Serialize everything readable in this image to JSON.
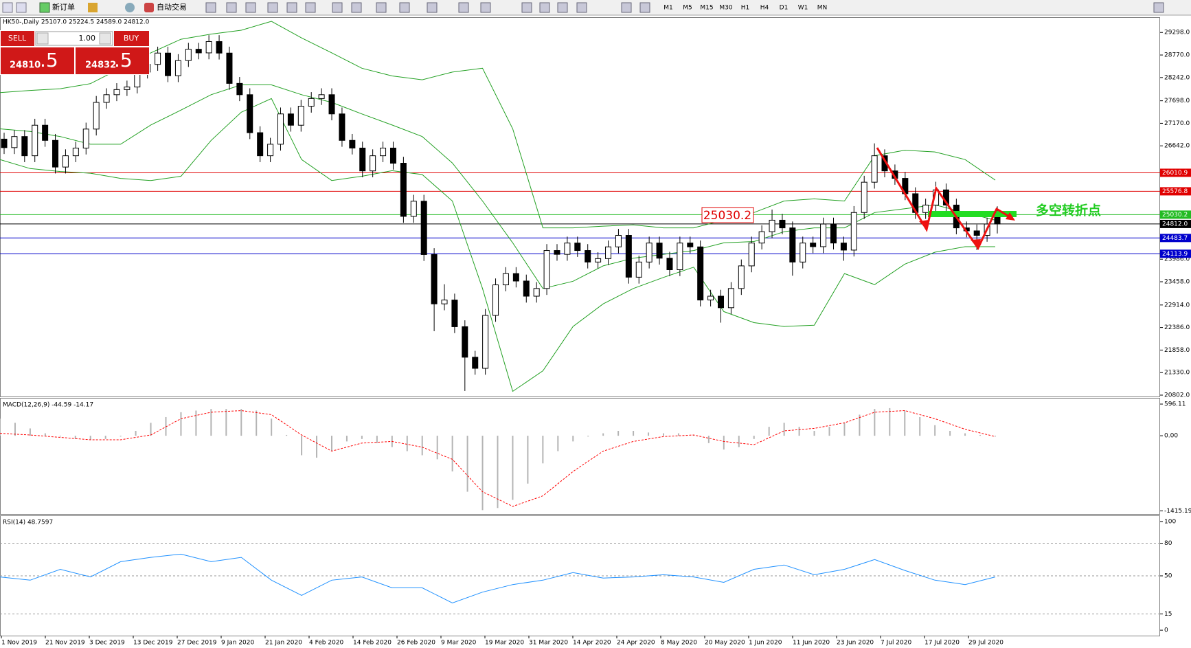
{
  "toolbar": {
    "items": [
      "新订单",
      "自动交易"
    ],
    "timeframes": [
      "M1",
      "M5",
      "M15",
      "M30",
      "H1",
      "H4",
      "D1",
      "W1",
      "MN"
    ]
  },
  "trade_panel": {
    "sell": "SELL",
    "lot": "1.00",
    "buy": "BUY",
    "sell_price": "24810",
    "sell_pips": ".5",
    "buy_price": "24832",
    "buy_pips": ".5"
  },
  "annotations": {
    "level_box": "25030.2",
    "note": "多空转折点"
  },
  "date_axis": [
    "1 Nov 2019",
    "21 Nov 2019",
    "3 Dec 2019",
    "13 Dec 2019",
    "27 Dec 2019",
    "9 Jan 2020",
    "21 Jan 2020",
    "4 Feb 2020",
    "14 Feb 2020",
    "26 Feb 2020",
    "9 Mar 2020",
    "19 Mar 2020",
    "31 Mar 2020",
    "14 Apr 2020",
    "24 Apr 2020",
    "8 May 2020",
    "20 May 2020",
    "1 Jun 2020",
    "11 Jun 2020",
    "23 Jun 2020",
    "7 Jul 2020",
    "17 Jul 2020",
    "29 Jul 2020"
  ],
  "chart_data": [
    {
      "type": "candlestick",
      "title": "HK50-,Daily 25107.0 25224.5 24589.0 24812.0",
      "ylim": [
        20770,
        29640
      ],
      "yticks": [
        {
          "value": 29298,
          "label": "29298.0"
        },
        {
          "value": 28770,
          "label": "28770.0"
        },
        {
          "value": 28242,
          "label": "28242.0"
        },
        {
          "value": 27698,
          "label": "27698.0"
        },
        {
          "value": 27170,
          "label": "27170.0"
        },
        {
          "value": 26642,
          "label": "26642.0"
        },
        {
          "value": 23986,
          "label": "23986.0"
        },
        {
          "value": 23458,
          "label": "23458.0"
        },
        {
          "value": 22914,
          "label": "22914.0"
        },
        {
          "value": 22386,
          "label": "22386.0"
        },
        {
          "value": 21858,
          "label": "21858.0"
        },
        {
          "value": 21330,
          "label": "21330.0"
        },
        {
          "value": 20802,
          "label": "20802.0"
        }
      ],
      "levels": [
        {
          "value": 26010.9,
          "color": "#e00000"
        },
        {
          "value": 25576.8,
          "color": "#e00000"
        },
        {
          "value": 25030.2,
          "color": "#22bb22"
        },
        {
          "value": 24812,
          "label": "24812.0",
          "color": "#000000"
        },
        {
          "value": 24483.7,
          "color": "#0000cc"
        },
        {
          "value": 24113.9,
          "color": "#0000cc"
        }
      ],
      "candles": [
        [
          26800,
          26950,
          26450,
          26600
        ],
        [
          26600,
          27010,
          26450,
          26860
        ],
        [
          26860,
          27010,
          26260,
          26410
        ],
        [
          26410,
          27275,
          26260,
          27125
        ],
        [
          27125,
          27275,
          26620,
          26770
        ],
        [
          26770,
          26920,
          25995,
          26145
        ],
        [
          26145,
          26560,
          25995,
          26410
        ],
        [
          26410,
          26740,
          26260,
          26590
        ],
        [
          26590,
          27185,
          26440,
          27035
        ],
        [
          27035,
          27810,
          26885,
          27660
        ],
        [
          27660,
          27990,
          27510,
          27840
        ],
        [
          27840,
          28110,
          27690,
          27960
        ],
        [
          27960,
          28170,
          27810,
          28020
        ],
        [
          28020,
          28520,
          27870,
          28370
        ],
        [
          28370,
          28700,
          28220,
          28550
        ],
        [
          28550,
          28965,
          28400,
          28815
        ],
        [
          28815,
          28965,
          28135,
          28285
        ],
        [
          28285,
          28790,
          28135,
          28640
        ],
        [
          28640,
          29055,
          28490,
          28905
        ],
        [
          28905,
          29055,
          28670,
          28820
        ],
        [
          28820,
          29235,
          28670,
          29085
        ],
        [
          29085,
          29235,
          28665,
          28815
        ],
        [
          28815,
          28965,
          27955,
          28105
        ],
        [
          28105,
          28255,
          27690,
          27840
        ],
        [
          27840,
          27990,
          26800,
          26950
        ],
        [
          26950,
          27100,
          26260,
          26410
        ],
        [
          26410,
          26830,
          26260,
          26680
        ],
        [
          26680,
          27540,
          26530,
          27390
        ],
        [
          27390,
          27540,
          26975,
          27125
        ],
        [
          27125,
          27720,
          26975,
          27570
        ],
        [
          27570,
          27900,
          27420,
          27750
        ],
        [
          27750,
          27990,
          27600,
          27840
        ],
        [
          27840,
          27990,
          27240,
          27390
        ],
        [
          27390,
          27540,
          26620,
          26770
        ],
        [
          26770,
          26920,
          26440,
          26590
        ],
        [
          26590,
          26740,
          25905,
          26055
        ],
        [
          26055,
          26560,
          25905,
          26410
        ],
        [
          26410,
          26740,
          26260,
          26590
        ],
        [
          26590,
          26740,
          26085,
          26235
        ],
        [
          26235,
          26385,
          24840,
          24990
        ],
        [
          24990,
          25495,
          24840,
          25345
        ],
        [
          25345,
          25495,
          23945,
          24095
        ],
        [
          24095,
          24245,
          22300,
          22940
        ],
        [
          22940,
          23400,
          22790,
          23030
        ],
        [
          23030,
          23180,
          22255,
          22405
        ],
        [
          22405,
          22555,
          20900,
          21690
        ],
        [
          21690,
          21840,
          21280,
          21430
        ],
        [
          21430,
          22820,
          21280,
          22670
        ],
        [
          22670,
          23535,
          22520,
          23385
        ],
        [
          23385,
          23800,
          23235,
          23650
        ],
        [
          23650,
          23800,
          23325,
          23475
        ],
        [
          23475,
          23625,
          22970,
          23120
        ],
        [
          23120,
          23450,
          22970,
          23300
        ],
        [
          23300,
          24340,
          23150,
          24190
        ],
        [
          24190,
          24340,
          23950,
          24100
        ],
        [
          24100,
          24515,
          23950,
          24365
        ],
        [
          24365,
          24515,
          24040,
          24190
        ],
        [
          24190,
          24340,
          23770,
          23920
        ],
        [
          23920,
          24150,
          23770,
          24000
        ],
        [
          24000,
          24425,
          23850,
          24275
        ],
        [
          24275,
          24695,
          24125,
          24545
        ],
        [
          24545,
          24695,
          23415,
          23565
        ],
        [
          23565,
          24070,
          23415,
          23920
        ],
        [
          23920,
          24515,
          23770,
          24365
        ],
        [
          24365,
          24515,
          23860,
          24010
        ],
        [
          24010,
          24160,
          23590,
          23740
        ],
        [
          23740,
          24515,
          23590,
          24365
        ],
        [
          24365,
          24515,
          24125,
          24275
        ],
        [
          24275,
          24425,
          22880,
          23030
        ],
        [
          23030,
          23270,
          22880,
          23120
        ],
        [
          23120,
          23270,
          22500,
          22850
        ],
        [
          22850,
          23450,
          22700,
          23300
        ],
        [
          23300,
          23980,
          23150,
          23830
        ],
        [
          23830,
          24515,
          23680,
          24365
        ],
        [
          24365,
          24780,
          24215,
          24630
        ],
        [
          24630,
          25150,
          24480,
          24900
        ],
        [
          24900,
          25050,
          24570,
          24720
        ],
        [
          24720,
          24870,
          23600,
          23920
        ],
        [
          23920,
          24515,
          23770,
          24365
        ],
        [
          24365,
          24515,
          24130,
          24280
        ],
        [
          24280,
          24960,
          24130,
          24810
        ],
        [
          24810,
          24960,
          24215,
          24365
        ],
        [
          24365,
          24515,
          23950,
          24200
        ],
        [
          24200,
          25230,
          24050,
          25080
        ],
        [
          25080,
          25940,
          24930,
          25790
        ],
        [
          25790,
          26700,
          25640,
          26410
        ],
        [
          26410,
          26560,
          25905,
          26055
        ],
        [
          26055,
          26205,
          25730,
          25880
        ],
        [
          25880,
          26030,
          25370,
          25520
        ],
        [
          25520,
          25670,
          24930,
          25080
        ],
        [
          25080,
          25405,
          24930,
          25255
        ],
        [
          25255,
          25800,
          25105,
          25610
        ],
        [
          25610,
          25760,
          25105,
          25255
        ],
        [
          25255,
          25405,
          24570,
          24720
        ],
        [
          24720,
          24870,
          24500,
          24650
        ],
        [
          24650,
          24800,
          24200,
          24545
        ],
        [
          24545,
          24960,
          24395,
          24810
        ],
        [
          25107,
          25224.5,
          24589,
          24812
        ]
      ],
      "series": [
        {
          "color": "#22a022",
          "values": [
            27890,
            27940,
            27980,
            28100,
            28460,
            28820,
            29140,
            29260,
            29350,
            29560,
            29170,
            28820,
            28460,
            28280,
            28190,
            28370,
            28460,
            27040,
            24720,
            24720,
            24760,
            24790,
            24720,
            24720,
            24900,
            25080,
            25350,
            25400,
            25350,
            26410,
            26540,
            26500,
            26320,
            25840
          ]
        },
        {
          "color": "#22a022",
          "values": [
            27040,
            26980,
            26860,
            26680,
            26680,
            27130,
            27480,
            27840,
            28070,
            28070,
            27840,
            27660,
            27390,
            27130,
            26860,
            26240,
            25350,
            24370,
            23300,
            23470,
            23830,
            24010,
            24100,
            24190,
            24370,
            24400,
            24630,
            24720,
            24720,
            25080,
            25170,
            25260,
            25080,
            24900
          ]
        },
        {
          "color": "#22a022",
          "values": [
            26320,
            26110,
            26040,
            26000,
            25880,
            25830,
            25930,
            26770,
            27430,
            27750,
            26320,
            25830,
            25930,
            26060,
            25970,
            25350,
            23300,
            20890,
            21370,
            22410,
            22940,
            23300,
            23560,
            23800,
            22760,
            22500,
            22410,
            22440,
            23650,
            23390,
            23870,
            24150,
            24280,
            24280
          ]
        }
      ]
    },
    {
      "type": "macd",
      "title": "MACD(12,26,9) -44.59 -14.17",
      "ylim": [
        -1473,
        700
      ],
      "yticks": [
        596.11,
        {
          "value": 0,
          "label": "0.00"
        },
        -1415.19
      ],
      "series": [
        {
          "type": "bar",
          "color": "#b4b4b4",
          "values": [
            321,
            244,
            138,
            46,
            -15,
            -61,
            -76,
            -61,
            -15,
            92,
            244,
            351,
            443,
            474,
            504,
            504,
            504,
            474,
            321,
            15,
            -367,
            -413,
            -290,
            -107,
            -61,
            -138,
            -214,
            -290,
            -367,
            -443,
            -672,
            -1054,
            -1400,
            -1360,
            -1207,
            -901,
            -520,
            -290,
            -107,
            -15,
            46,
            92,
            92,
            61,
            46,
            46,
            15,
            -138,
            -260,
            -214,
            -61,
            168,
            244,
            168,
            92,
            168,
            244,
            397,
            504,
            520,
            474,
            351,
            199,
            92,
            46,
            15,
            -15
          ]
        },
        {
          "type": "line",
          "color": "#ff0000",
          "dashed": true,
          "values": [
            46,
            15,
            -31,
            -76,
            -76,
            15,
            321,
            443,
            474,
            397,
            15,
            -290,
            -138,
            -107,
            -214,
            -443,
            -1054,
            -1329,
            -1131,
            -672,
            -290,
            -107,
            -15,
            15,
            -107,
            -168,
            92,
            138,
            244,
            443,
            474,
            321,
            122,
            -15
          ]
        }
      ]
    },
    {
      "type": "line",
      "title": "RSI(14) 48.7597",
      "ylim": [
        -5,
        105
      ],
      "yticks": [
        100,
        80,
        50,
        15,
        0
      ],
      "levels": [
        80,
        50,
        15
      ],
      "series": [
        {
          "color": "#1e90ff",
          "values": [
            49,
            46,
            56,
            49,
            63,
            67,
            70,
            63,
            67,
            46,
            32,
            46,
            49,
            39,
            39,
            25,
            35,
            42,
            46,
            53,
            48,
            49,
            51,
            49,
            44,
            56,
            60,
            51,
            56,
            65,
            55,
            46,
            42,
            49
          ]
        }
      ]
    }
  ]
}
